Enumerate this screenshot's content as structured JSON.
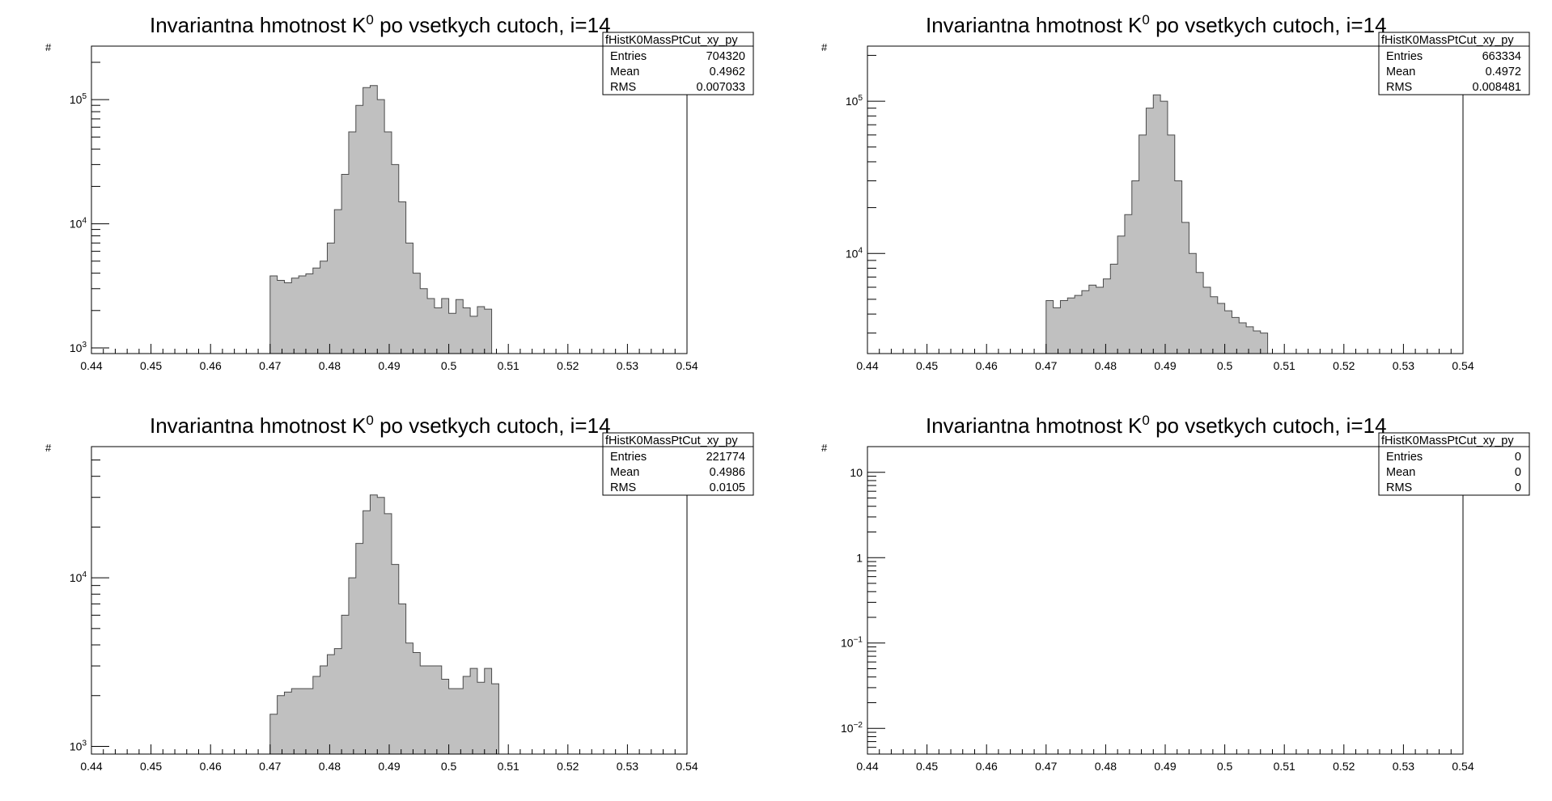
{
  "chart_data": [
    {
      "type": "bar",
      "title_main": "Invariantna hmotnost K",
      "title_sup": "0",
      "title_rest": " po vsetkych cutoch, i=14",
      "ylabel": "#",
      "xlim": [
        0.44,
        0.54
      ],
      "ylog": true,
      "ylim": [
        900,
        270000
      ],
      "x_ticks": [
        "0.44",
        "0.45",
        "0.46",
        "0.47",
        "0.48",
        "0.49",
        "0.5",
        "0.51",
        "0.52",
        "0.53",
        "0.54"
      ],
      "y_ticks": [
        {
          "value": 1000,
          "base": "10",
          "exp": "3"
        },
        {
          "value": 10000,
          "base": "10",
          "exp": "4"
        },
        {
          "value": 100000,
          "base": "10",
          "exp": "5"
        }
      ],
      "bin_start": 0.47,
      "bin_width": 0.0012,
      "values": [
        3800,
        3500,
        3350,
        3650,
        3800,
        3950,
        4400,
        5000,
        7000,
        13000,
        25000,
        55000,
        90000,
        125000,
        130000,
        100000,
        55000,
        30000,
        15000,
        7000,
        4000,
        3000,
        2500,
        2100,
        2500,
        1900,
        2450,
        2100,
        1800,
        2150,
        2050
      ],
      "stats": {
        "name": "fHistK0MassPtCut_xy_py",
        "entries_label": "Entries",
        "entries": "704320",
        "mean_label": "Mean",
        "mean": "0.4962",
        "rms_label": "RMS",
        "rms": "0.007033"
      }
    },
    {
      "type": "bar",
      "title_main": "Invariantna hmotnost K",
      "title_sup": "0",
      "title_rest": " po vsetkych cutoch, i=14",
      "ylabel": "#",
      "xlim": [
        0.44,
        0.54
      ],
      "ylog": true,
      "ylim": [
        2200,
        230000
      ],
      "x_ticks": [
        "0.44",
        "0.45",
        "0.46",
        "0.47",
        "0.48",
        "0.49",
        "0.5",
        "0.51",
        "0.52",
        "0.53",
        "0.54"
      ],
      "y_ticks": [
        {
          "value": 10000,
          "base": "10",
          "exp": "4"
        },
        {
          "value": 100000,
          "base": "10",
          "exp": "5"
        }
      ],
      "bin_start": 0.47,
      "bin_width": 0.0012,
      "values": [
        4900,
        4400,
        4900,
        5100,
        5300,
        5700,
        6200,
        6000,
        6800,
        8500,
        13000,
        18000,
        30000,
        60000,
        90000,
        110000,
        100000,
        60000,
        30000,
        16000,
        10000,
        7500,
        6000,
        5200,
        4700,
        4200,
        3800,
        3500,
        3300,
        3100,
        3000
      ],
      "stats": {
        "name": "fHistK0MassPtCut_xy_py",
        "entries_label": "Entries",
        "entries": "663334",
        "mean_label": "Mean",
        "mean": "0.4972",
        "rms_label": "RMS",
        "rms": "0.008481"
      }
    },
    {
      "type": "bar",
      "title_main": "Invariantna hmotnost K",
      "title_sup": "0",
      "title_rest": " po vsetkych cutoch, i=14",
      "ylabel": "#",
      "xlim": [
        0.44,
        0.54
      ],
      "ylog": true,
      "ylim": [
        900,
        60000
      ],
      "x_ticks": [
        "0.44",
        "0.45",
        "0.46",
        "0.47",
        "0.48",
        "0.49",
        "0.5",
        "0.51",
        "0.52",
        "0.53",
        "0.54"
      ],
      "y_ticks": [
        {
          "value": 1000,
          "base": "10",
          "exp": "3"
        },
        {
          "value": 10000,
          "base": "10",
          "exp": "4"
        }
      ],
      "bin_start": 0.47,
      "bin_width": 0.0012,
      "values": [
        1550,
        2000,
        2100,
        2200,
        2200,
        2200,
        2600,
        3000,
        3500,
        3800,
        6000,
        10000,
        16000,
        25000,
        31000,
        30000,
        24000,
        12000,
        7000,
        4100,
        3600,
        3000,
        3000,
        3000,
        2500,
        2200,
        2200,
        2600,
        2900,
        2400,
        2900,
        2350
      ],
      "stats": {
        "name": "fHistK0MassPtCut_xy_py",
        "entries_label": "Entries",
        "entries": "221774",
        "mean_label": "Mean",
        "mean": "0.4986",
        "rms_label": "RMS",
        "rms": "0.0105"
      }
    },
    {
      "type": "bar",
      "title_main": "Invariantna hmotnost K",
      "title_sup": "0",
      "title_rest": " po vsetkych cutoch, i=14",
      "ylabel": "#",
      "xlim": [
        0.44,
        0.54
      ],
      "ylog": true,
      "ylim": [
        0.005,
        20
      ],
      "x_ticks": [
        "0.44",
        "0.45",
        "0.46",
        "0.47",
        "0.48",
        "0.49",
        "0.5",
        "0.51",
        "0.52",
        "0.53",
        "0.54"
      ],
      "y_ticks": [
        {
          "value": 0.01,
          "base": "10",
          "exp": "−2"
        },
        {
          "value": 0.1,
          "base": "10",
          "exp": "−1"
        },
        {
          "value": 1,
          "base": "1",
          "exp": ""
        },
        {
          "value": 10,
          "base": "10",
          "exp": ""
        }
      ],
      "bin_start": 0.47,
      "bin_width": 0.0012,
      "values": [],
      "stats": {
        "name": "fHistK0MassPtCut_xy_py",
        "entries_label": "Entries",
        "entries": "0",
        "mean_label": "Mean",
        "mean": "0",
        "rms_label": "RMS",
        "rms": "0"
      }
    }
  ],
  "colors": {
    "fill": "#c0c0c0",
    "line": "#4a4a4a",
    "axis": "#000000"
  }
}
